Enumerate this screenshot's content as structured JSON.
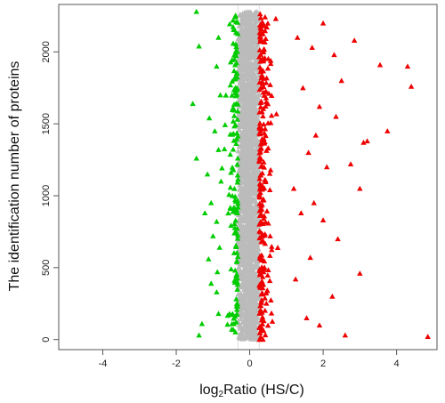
{
  "chart_data": {
    "type": "scatter",
    "xlabel_prefix": "log",
    "xlabel_subscript": "2",
    "xlabel_rest": "Ratio (HS/C)",
    "ylabel": "The identification number of proteins",
    "xlim": [
      -5.2,
      5.1
    ],
    "ylim": [
      -70,
      2330
    ],
    "x_ticks": [
      -4,
      -2,
      0,
      2,
      4
    ],
    "y_ticks": [
      0,
      500,
      1000,
      1500,
      2000
    ],
    "x_tick_labels": [
      "-4",
      "-2",
      "0",
      "2",
      "4"
    ],
    "y_tick_labels": [
      "0",
      "500",
      "1000",
      "1500",
      "2000"
    ],
    "thresholds": [
      -0.32,
      0.26
    ],
    "n_proteins": 2280,
    "colors": {
      "down": "#00cc00",
      "up": "#ee0000",
      "unchanged": "#bbbbbb"
    },
    "series": [
      {
        "group": "down",
        "points": [
          [
            -1.45,
            2280
          ],
          [
            -1.38,
            2040
          ],
          [
            -1.55,
            1640
          ],
          [
            -1.1,
            1540
          ],
          [
            -1.45,
            1260
          ],
          [
            -1.15,
            1150
          ],
          [
            -1.05,
            950
          ],
          [
            -1.22,
            880
          ],
          [
            -1.0,
            720
          ],
          [
            -1.12,
            560
          ],
          [
            -1.05,
            390
          ],
          [
            -1.3,
            110
          ],
          [
            -1.38,
            30
          ],
          [
            -0.85,
            2100
          ],
          [
            -0.9,
            1900
          ],
          [
            -0.8,
            1700
          ],
          [
            -0.95,
            1450
          ],
          [
            -0.85,
            1320
          ],
          [
            -0.78,
            1100
          ],
          [
            -0.9,
            820
          ],
          [
            -0.82,
            640
          ],
          [
            -0.88,
            470
          ],
          [
            -0.9,
            330
          ],
          [
            -0.85,
            180
          ]
        ]
      },
      {
        "group": "up",
        "points": [
          [
            4.85,
            20
          ],
          [
            4.4,
            1760
          ],
          [
            4.3,
            1900
          ],
          [
            3.75,
            1450
          ],
          [
            3.55,
            1910
          ],
          [
            3.2,
            1380
          ],
          [
            3.1,
            1370
          ],
          [
            3.0,
            1050
          ],
          [
            3.0,
            460
          ],
          [
            2.85,
            2080
          ],
          [
            2.75,
            1220
          ],
          [
            2.6,
            30
          ],
          [
            2.5,
            1800
          ],
          [
            2.4,
            700
          ],
          [
            2.35,
            1550
          ],
          [
            2.3,
            1980
          ],
          [
            2.25,
            300
          ],
          [
            2.1,
            1200
          ],
          [
            2.0,
            2200
          ],
          [
            2.0,
            830
          ],
          [
            1.9,
            1620
          ],
          [
            1.9,
            100
          ],
          [
            1.8,
            1420
          ],
          [
            1.75,
            950
          ],
          [
            1.7,
            2030
          ],
          [
            1.65,
            570
          ],
          [
            1.6,
            1300
          ],
          [
            1.55,
            150
          ],
          [
            1.45,
            1750
          ],
          [
            1.4,
            880
          ],
          [
            1.3,
            2100
          ],
          [
            1.25,
            420
          ],
          [
            1.2,
            1050
          ]
        ]
      }
    ]
  }
}
